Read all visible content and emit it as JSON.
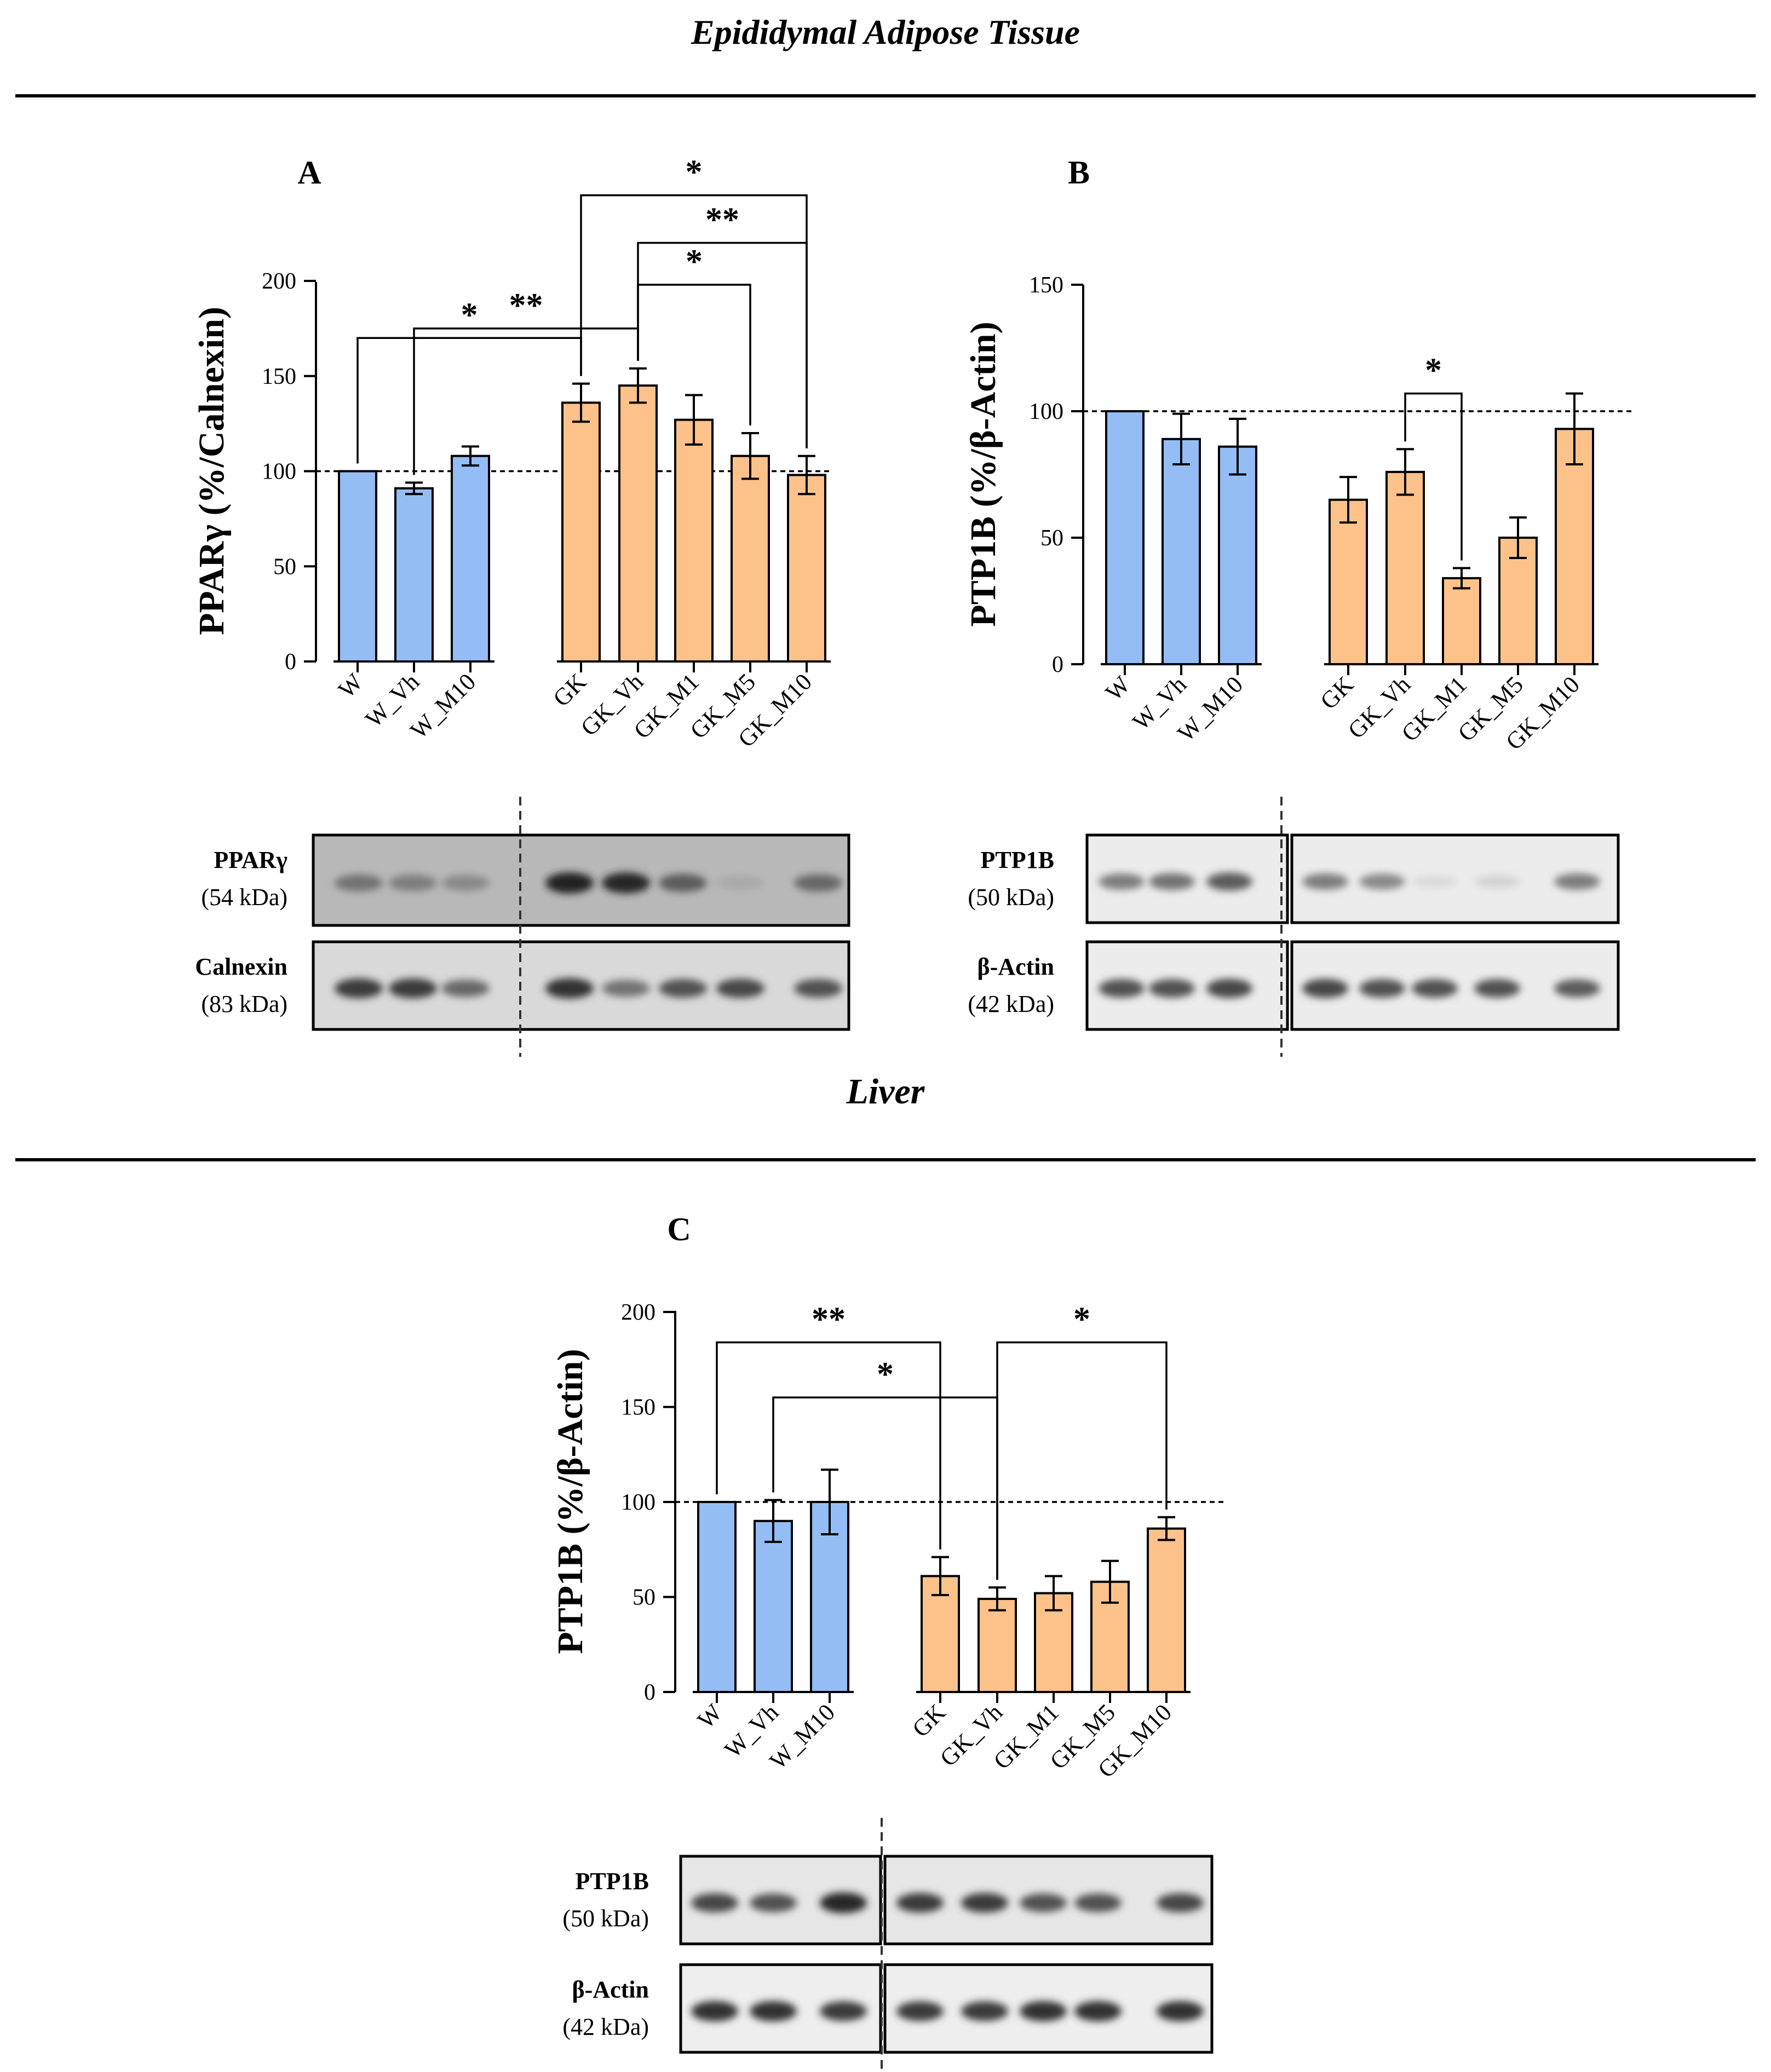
{
  "sections": {
    "top_title": "Epididymal Adipose Tissue",
    "bottom_title": "Liver"
  },
  "colors": {
    "w_group": "#94BDF6",
    "gk_group": "#FDC28A",
    "axis": "#000000"
  },
  "chart_data": [
    {
      "panel": "A",
      "type": "bar",
      "ylabel": "PPARγ (%/Calnexin)",
      "ylim": [
        0,
        200
      ],
      "yticks": [
        0,
        50,
        100,
        150,
        200
      ],
      "reference_line": 100,
      "categories": [
        "W",
        "W_Vh",
        "W_M10",
        "GK",
        "GK_Vh",
        "GK_M1",
        "GK_M5",
        "GK_M10"
      ],
      "groups": [
        "W",
        "W",
        "W",
        "GK",
        "GK",
        "GK",
        "GK",
        "GK"
      ],
      "values": [
        100,
        91,
        108,
        136,
        145,
        127,
        108,
        98
      ],
      "errors": [
        0,
        3,
        5,
        10,
        9,
        13,
        12,
        10
      ],
      "significance": [
        {
          "from": 0,
          "to": 3,
          "label": "*",
          "level": 170
        },
        {
          "from": 1,
          "to": 4,
          "label": "**",
          "level": 175
        },
        {
          "from": 3,
          "to": 7,
          "label": "*",
          "level": 245
        },
        {
          "from": 4,
          "to": 7,
          "label": "**",
          "level": 220
        },
        {
          "from": 4,
          "to": 6,
          "label": "*",
          "level": 198
        }
      ],
      "blot": {
        "rows": [
          {
            "protein": "PPARγ",
            "size": "(54 kDa)",
            "intensity": [
              0.55,
              0.5,
              0.45,
              0.92,
              0.9,
              0.65,
              0.3,
              0.6
            ],
            "bg": "#b8b8b8"
          },
          {
            "protein": "Calnexin",
            "size": "(83 kDa)",
            "intensity": [
              0.8,
              0.8,
              0.6,
              0.85,
              0.55,
              0.7,
              0.75,
              0.7
            ],
            "bg": "#d9d9d9"
          }
        ]
      }
    },
    {
      "panel": "B",
      "type": "bar",
      "ylabel": "PTP1B (%/β-Actin)",
      "ylim": [
        0,
        150
      ],
      "yticks": [
        0,
        50,
        100,
        150
      ],
      "reference_line": 100,
      "categories": [
        "W",
        "W_Vh",
        "W_M10",
        "GK",
        "GK_Vh",
        "GK_M1",
        "GK_M5",
        "GK_M10"
      ],
      "groups": [
        "W",
        "W",
        "W",
        "GK",
        "GK",
        "GK",
        "GK",
        "GK"
      ],
      "values": [
        100,
        89,
        86,
        65,
        76,
        34,
        50,
        93
      ],
      "errors": [
        0,
        10,
        11,
        9,
        9,
        4,
        8,
        14
      ],
      "significance": [
        {
          "from": 4,
          "to": 5,
          "label": "*",
          "level": 107
        }
      ],
      "blot": {
        "rows": [
          {
            "protein": "PTP1B",
            "size": "(50 kDa)",
            "intensity": [
              0.5,
              0.55,
              0.65,
              0.5,
              0.45,
              0.08,
              0.12,
              0.5
            ],
            "bg": "#ececec"
          },
          {
            "protein": "β-Actin",
            "size": "(42 kDa)",
            "intensity": [
              0.7,
              0.7,
              0.75,
              0.75,
              0.7,
              0.7,
              0.7,
              0.65
            ],
            "bg": "#ececec"
          }
        ]
      }
    },
    {
      "panel": "C",
      "type": "bar",
      "ylabel": "PTP1B (%/β-Actin)",
      "ylim": [
        0,
        200
      ],
      "yticks": [
        0,
        50,
        100,
        150,
        200
      ],
      "reference_line": 100,
      "categories": [
        "W",
        "W_Vh",
        "W_M10",
        "GK",
        "GK_Vh",
        "GK_M1",
        "GK_M5",
        "GK_M10"
      ],
      "groups": [
        "W",
        "W",
        "W",
        "GK",
        "GK",
        "GK",
        "GK",
        "GK"
      ],
      "values": [
        100,
        90,
        100,
        61,
        49,
        52,
        58,
        86
      ],
      "errors": [
        0,
        11,
        17,
        10,
        6,
        9,
        11,
        6
      ],
      "significance": [
        {
          "from": 0,
          "to": 3,
          "label": "**",
          "level": 184
        },
        {
          "from": 1,
          "to": 4,
          "label": "*",
          "level": 155
        },
        {
          "from": 4,
          "to": 7,
          "label": "*",
          "level": 184
        }
      ],
      "blot": {
        "rows": [
          {
            "protein": "PTP1B",
            "size": "(50 kDa)",
            "intensity": [
              0.75,
              0.7,
              0.9,
              0.8,
              0.8,
              0.7,
              0.7,
              0.75
            ],
            "bg": "#e6e6e6"
          },
          {
            "protein": "β-Actin",
            "size": "(42 kDa)",
            "intensity": [
              0.85,
              0.85,
              0.8,
              0.8,
              0.8,
              0.85,
              0.85,
              0.85
            ],
            "bg": "#eeeeee"
          }
        ]
      }
    }
  ]
}
